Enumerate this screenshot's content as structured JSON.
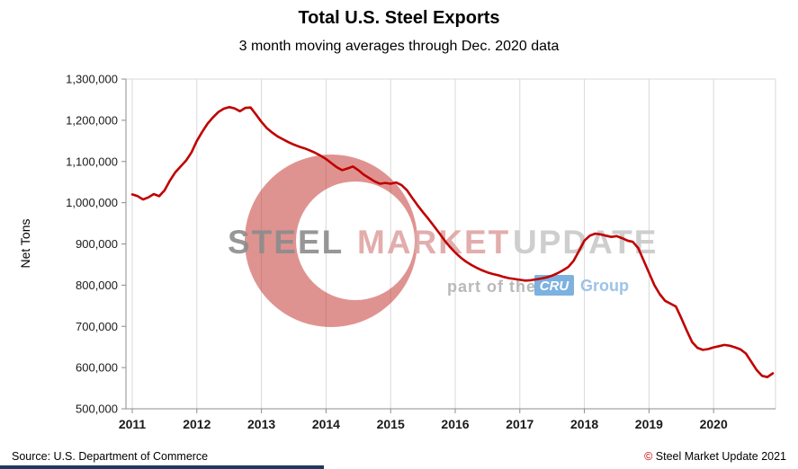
{
  "title": "Total U.S. Steel Exports",
  "subtitle": "3 month moving averages through Dec. 2020 data",
  "footer": {
    "source": "Source: U.S. Department of Commerce",
    "copyright_symbol": "©",
    "copyright_text": " Steel Market Update 2021"
  },
  "watermark": {
    "steel": "STEEL",
    "market": "MARKET",
    "update": "UPDATE",
    "part_of": "part of the",
    "cru": "CRU",
    "group": "Group"
  },
  "colors": {
    "line": "#C00000",
    "grid": "#D9D9D9",
    "plot_border": "#D9D9D9",
    "axis": "#8C8C8C",
    "tick_label": "#1A1A1A",
    "watermark_red": "#C43B35",
    "watermark_steel": "#8C8C8C",
    "watermark_market": "#DFA4A3",
    "watermark_update": "#C9C9C9",
    "watermark_partof": "#B9B9B9",
    "cru_box": "#6FA8DC",
    "cru_text": "#FFFFFF",
    "group_text": "#9DC3E6",
    "copyright_symbol": "#C00000",
    "accent_bar": "#1F3864"
  },
  "chart_data": {
    "type": "line",
    "title": "Total U.S. Steel Exports",
    "subtitle": "3 month moving averages through Dec. 2020 data",
    "xlabel": "",
    "ylabel": "Net Tons",
    "ylim": [
      500000,
      1300000
    ],
    "ytick_step": 100000,
    "grid": "vertical-only",
    "legend": "none",
    "x_years": [
      "2011",
      "2012",
      "2013",
      "2014",
      "2015",
      "2016",
      "2017",
      "2018",
      "2019",
      "2020"
    ],
    "x_start": "2011-01",
    "x_end": "2020-12",
    "x_frequency": "monthly",
    "series": [
      {
        "name": "Total U.S. Steel Exports (3-month moving average, net tons)",
        "values": [
          1020000,
          1016000,
          1008000,
          1013000,
          1021000,
          1016000,
          1030000,
          1054000,
          1074000,
          1088000,
          1102000,
          1122000,
          1150000,
          1172000,
          1192000,
          1207000,
          1220000,
          1228000,
          1232000,
          1229000,
          1222000,
          1230000,
          1231000,
          1214000,
          1196000,
          1181000,
          1170000,
          1161000,
          1154000,
          1147000,
          1141000,
          1136000,
          1132000,
          1127000,
          1121000,
          1114000,
          1106000,
          1096000,
          1086000,
          1079000,
          1083000,
          1088000,
          1079000,
          1068000,
          1060000,
          1052000,
          1046000,
          1048000,
          1046000,
          1049000,
          1043000,
          1031000,
          1012000,
          994000,
          977000,
          961000,
          944000,
          927000,
          909000,
          893000,
          879000,
          867000,
          857000,
          849000,
          842000,
          836000,
          831000,
          827000,
          824000,
          820000,
          817000,
          815000,
          813000,
          811000,
          812000,
          814000,
          816000,
          819000,
          823000,
          829000,
          836000,
          844000,
          859000,
          883000,
          908000,
          920000,
          925000,
          923000,
          920000,
          917000,
          919000,
          914000,
          908000,
          905000,
          890000,
          860000,
          830000,
          800000,
          778000,
          762000,
          755000,
          748000,
          720000,
          690000,
          662000,
          648000,
          643000,
          645000,
          649000,
          652000,
          655000,
          653000,
          649000,
          644000,
          634000,
          614000,
          594000,
          580000,
          577000,
          586000
        ]
      }
    ]
  }
}
